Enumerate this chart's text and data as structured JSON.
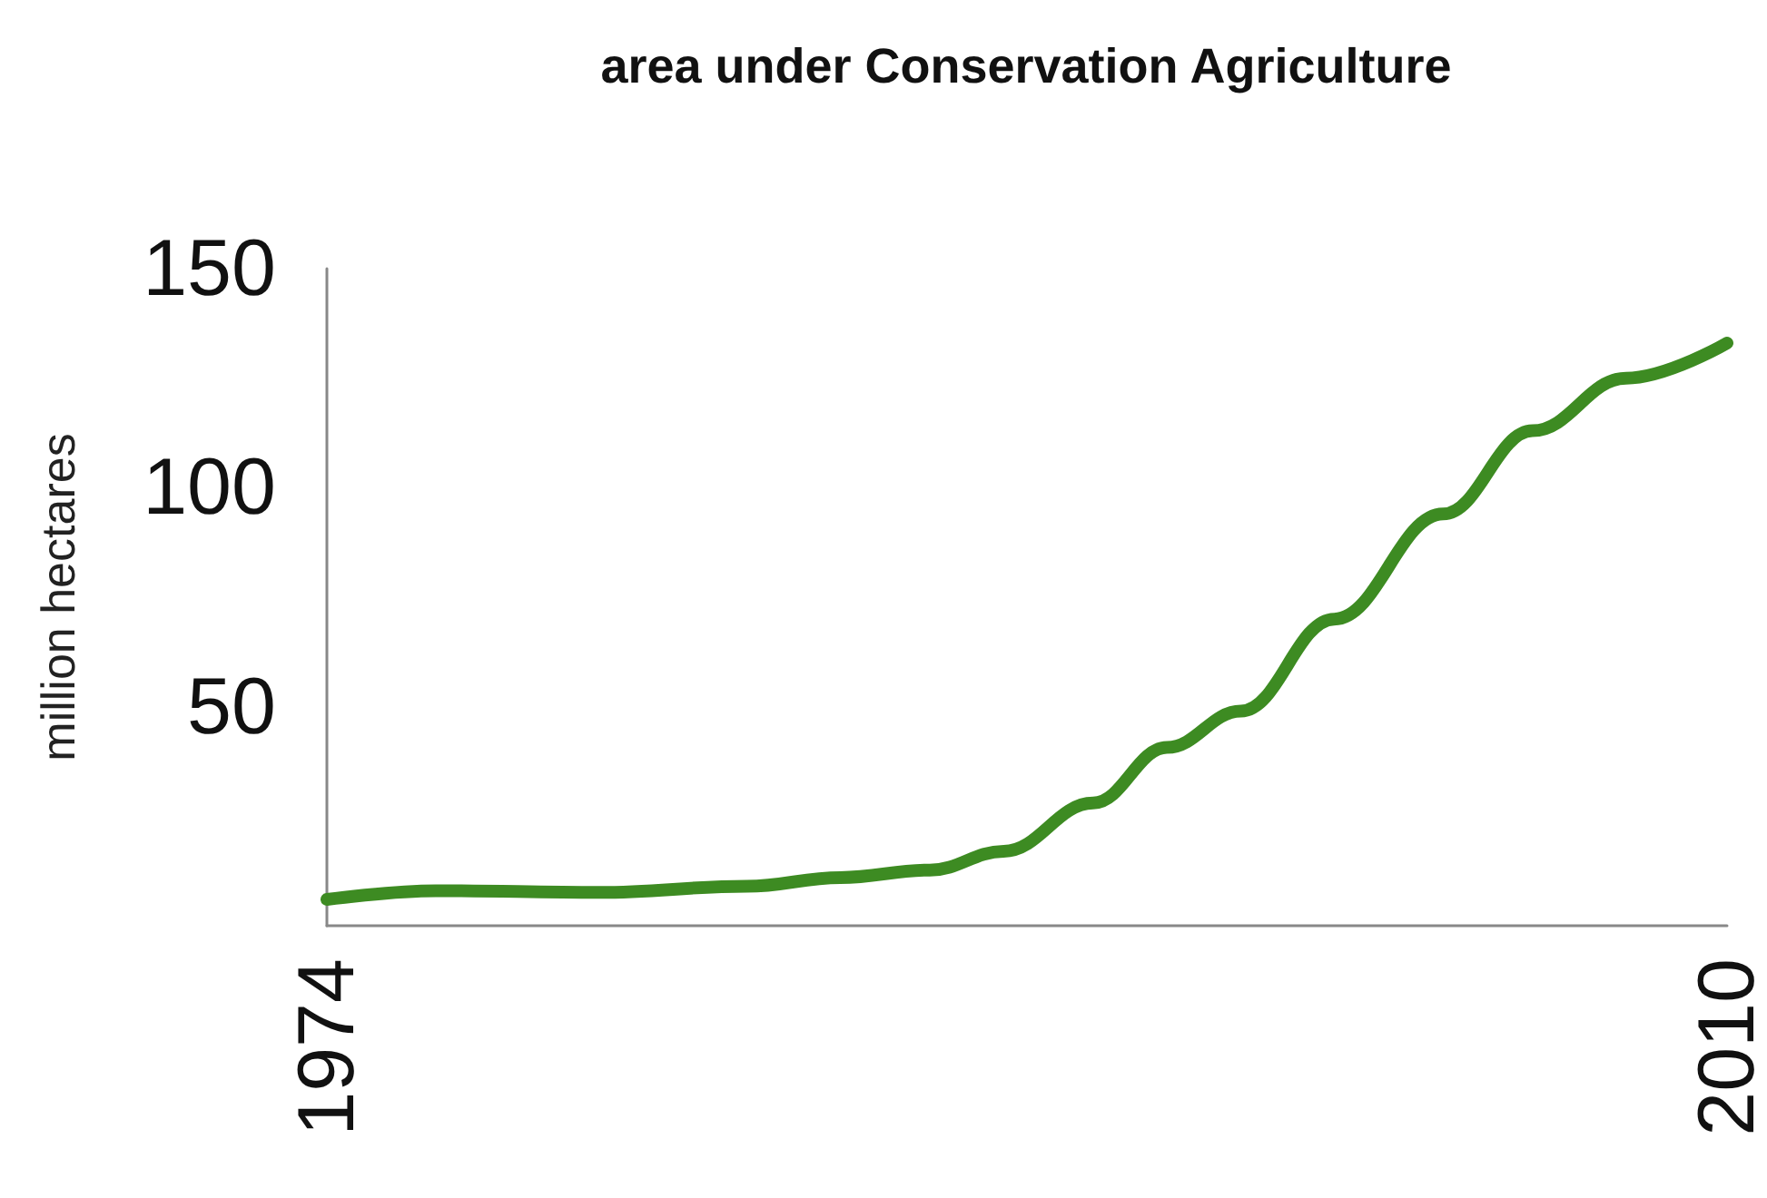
{
  "chart_data": {
    "type": "line",
    "title": "area under Conservation Agriculture",
    "ylabel": "million hectares",
    "x": [
      1974,
      1976.8,
      1981,
      1984.8,
      1987.2,
      1989.5,
      1991.4,
      1993.7,
      1995.6,
      1997.5,
      1999.9,
      2002.7,
      2005,
      2007.4,
      2010
    ],
    "series": [
      {
        "color": "#3d8b22",
        "values": [
          6,
          8,
          7.6,
          9,
          11,
          12.7,
          17,
          28,
          40.7,
          49,
          70,
          94,
          113,
          125,
          133
        ]
      }
    ],
    "xlim": [
      1974,
      2010
    ],
    "xticks": [
      1974,
      2010
    ],
    "ylim": [
      0,
      150
    ],
    "yticks": [
      50,
      100,
      150
    ],
    "grid": false,
    "line_style": "solid"
  }
}
